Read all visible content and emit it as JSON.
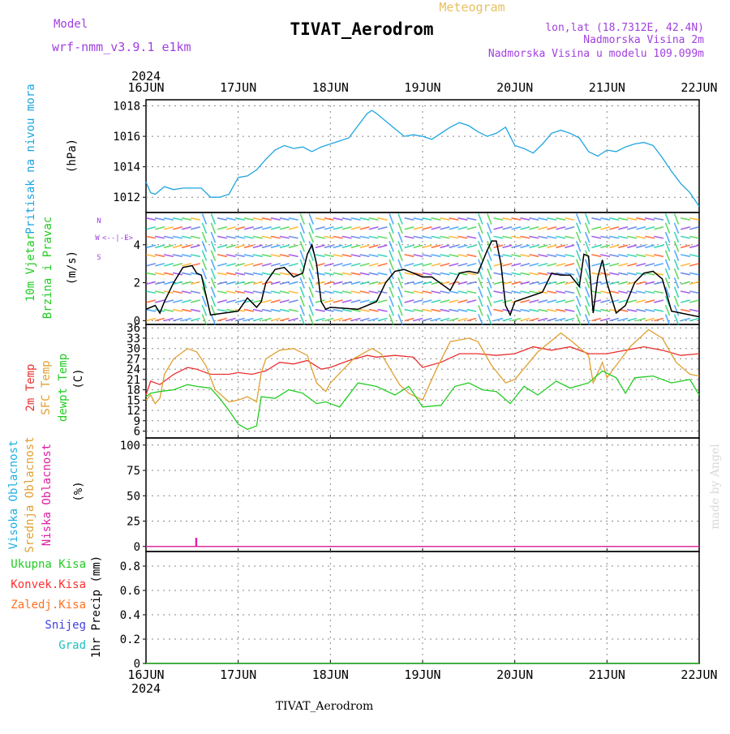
{
  "header": {
    "model_label": "Model",
    "model_name": "wrf-nmm_v3.9.1  e1km",
    "meteogram_label": "Meteogram",
    "title": "TIVAT_Aerodrom",
    "lonlat": "lon,lat (18.7312E, 42.4N)",
    "elevation": "Nadmorska Visina 2m",
    "model_elevation": "Nadmorska Visina u modelu 109.099m",
    "year_top": "2024",
    "year_bottom": "2024",
    "footer": "TIVAT_Aerodrom",
    "watermark": "made by Angel"
  },
  "colors": {
    "pressure": "#1ea5e0",
    "wind_speed": "#000000",
    "wind_gust": "#ff3030",
    "temp2m": "#e83030",
    "sfc_temp": "#e0a030",
    "dewpoint": "#22cc22",
    "model_text": "#a040e0",
    "meteogram_text": "#e8c060",
    "precip_total": "#22cc22",
    "precip_conv": "#ff3030",
    "precip_frz": "#ff7020",
    "precip_snow": "#4040e0",
    "precip_grad": "#20c0c0",
    "cloud_high": "#20b0e0",
    "cloud_mid": "#e0a030",
    "cloud_low": "#e020a0"
  },
  "chart_data": [
    {
      "type": "line",
      "panel": "pressure",
      "ylabel": [
        "Pritisak na nivou mora",
        "(hPa)"
      ],
      "x_ticks": [
        "16JUN",
        "17JUN",
        "18JUN",
        "19JUN",
        "20JUN",
        "21JUN",
        "22JUN"
      ],
      "ylim": [
        1011,
        1018.4
      ],
      "y_ticks": [
        1012,
        1014,
        1016,
        1018
      ],
      "grid": true,
      "series": [
        {
          "x": [
            0,
            0.05,
            0.1,
            0.2,
            0.3,
            0.4,
            0.5,
            0.6,
            0.65,
            0.7,
            0.8,
            0.9,
            1.0,
            1.1,
            1.2,
            1.3,
            1.4,
            1.5,
            1.6,
            1.7,
            1.8,
            1.9,
            2.0,
            2.1,
            2.2,
            2.3,
            2.4,
            2.45,
            2.5,
            2.6,
            2.7,
            2.8,
            2.9,
            3.0,
            3.1,
            3.2,
            3.3,
            3.4,
            3.5,
            3.6,
            3.7,
            3.8,
            3.9,
            4.0,
            4.1,
            4.2,
            4.3,
            4.4,
            4.5,
            4.6,
            4.7,
            4.8,
            4.9,
            5.0,
            5.1,
            5.2,
            5.3,
            5.4,
            5.5,
            5.6,
            5.7,
            5.8,
            5.9,
            6.0
          ],
          "values": [
            1013.0,
            1012.3,
            1012.2,
            1012.7,
            1012.5,
            1012.6,
            1012.6,
            1012.6,
            1012.3,
            1012.0,
            1012.0,
            1012.2,
            1013.3,
            1013.4,
            1013.8,
            1014.5,
            1015.1,
            1015.4,
            1015.2,
            1015.3,
            1015.0,
            1015.3,
            1015.5,
            1015.7,
            1015.9,
            1016.7,
            1017.5,
            1017.7,
            1017.5,
            1017.0,
            1016.5,
            1016.0,
            1016.1,
            1016.0,
            1015.8,
            1016.2,
            1016.6,
            1016.9,
            1016.7,
            1016.3,
            1016.0,
            1016.2,
            1016.6,
            1015.4,
            1015.2,
            1014.9,
            1015.5,
            1016.2,
            1016.4,
            1016.2,
            1015.9,
            1015.0,
            1014.7,
            1015.1,
            1015.0,
            1015.3,
            1015.5,
            1015.6,
            1015.4,
            1014.6,
            1013.7,
            1012.9,
            1012.3,
            1011.4
          ]
        }
      ]
    },
    {
      "type": "line",
      "panel": "wind",
      "ylabel": [
        "10m Vjetar",
        "Brzina i Pravac",
        "(m/s)"
      ],
      "compass": {
        "n": "N",
        "s": "S",
        "e": "E",
        "w": "W",
        "arrows": "<--|-->"
      },
      "ylim": [
        -0.2,
        5.7
      ],
      "y_ticks": [
        0,
        2,
        4
      ],
      "grid": true,
      "series": [
        {
          "name": "wind speed",
          "x": [
            0,
            0.1,
            0.15,
            0.2,
            0.3,
            0.4,
            0.5,
            0.55,
            0.6,
            0.7,
            1.0,
            1.1,
            1.2,
            1.25,
            1.3,
            1.4,
            1.5,
            1.6,
            1.7,
            1.75,
            1.8,
            1.85,
            1.9,
            1.95,
            2.0,
            2.3,
            2.5,
            2.6,
            2.7,
            2.8,
            2.9,
            3.0,
            3.1,
            3.3,
            3.4,
            3.5,
            3.6,
            3.7,
            3.75,
            3.8,
            3.85,
            3.9,
            3.95,
            4.0,
            4.3,
            4.4,
            4.5,
            4.6,
            4.7,
            4.75,
            4.8,
            4.85,
            4.9,
            4.95,
            5.0,
            5.1,
            5.2,
            5.3,
            5.4,
            5.5,
            5.6,
            5.7,
            6.0
          ],
          "values": [
            0.6,
            0.8,
            0.4,
            1.0,
            2.0,
            2.8,
            2.9,
            2.5,
            2.4,
            0.3,
            0.5,
            1.2,
            0.7,
            1.0,
            2.0,
            2.7,
            2.8,
            2.3,
            2.5,
            3.5,
            4.0,
            3.0,
            1.0,
            0.6,
            0.7,
            0.6,
            1.0,
            2.0,
            2.6,
            2.7,
            2.5,
            2.3,
            2.3,
            1.6,
            2.5,
            2.6,
            2.5,
            3.7,
            4.2,
            4.2,
            3.0,
            0.8,
            0.3,
            1.0,
            1.5,
            2.5,
            2.4,
            2.4,
            1.8,
            3.5,
            3.4,
            0.4,
            2.3,
            3.2,
            2.0,
            0.4,
            0.8,
            2.0,
            2.5,
            2.6,
            2.2,
            0.5,
            0.2
          ]
        }
      ]
    },
    {
      "type": "line",
      "panel": "temperature",
      "ylabel": [
        "2m Temp",
        "SFC Temp",
        "dewpt Temp",
        "(C)"
      ],
      "ylim": [
        4,
        37
      ],
      "y_ticks": [
        6,
        9,
        12,
        15,
        18,
        21,
        24,
        27,
        30,
        33,
        36
      ],
      "grid": true,
      "series": [
        {
          "name": "2m Temp",
          "x": [
            0,
            0.05,
            0.15,
            0.3,
            0.45,
            0.55,
            0.7,
            0.9,
            1.0,
            1.15,
            1.3,
            1.45,
            1.6,
            1.75,
            1.9,
            2.0,
            2.2,
            2.4,
            2.5,
            2.7,
            2.9,
            3.0,
            3.2,
            3.4,
            3.6,
            3.8,
            4.0,
            4.2,
            4.4,
            4.6,
            4.8,
            5.0,
            5.2,
            5.4,
            5.6,
            5.8,
            6.0
          ],
          "values": [
            16.5,
            20.5,
            19.5,
            22.5,
            24.5,
            24.0,
            22.5,
            22.5,
            23.0,
            22.5,
            23.5,
            26.0,
            25.5,
            26.5,
            24.0,
            24.5,
            26.5,
            28.0,
            27.5,
            28.0,
            27.5,
            24.5,
            26.0,
            28.5,
            28.5,
            28.0,
            28.5,
            30.5,
            29.5,
            30.5,
            28.5,
            28.5,
            29.5,
            30.5,
            29.5,
            28.0,
            28.5
          ]
        },
        {
          "name": "SFC Temp",
          "x": [
            0,
            0.05,
            0.1,
            0.15,
            0.2,
            0.3,
            0.45,
            0.55,
            0.65,
            0.75,
            0.9,
            1.0,
            1.1,
            1.2,
            1.25,
            1.3,
            1.45,
            1.6,
            1.75,
            1.85,
            1.95,
            2.0,
            2.25,
            2.45,
            2.55,
            2.65,
            2.75,
            2.85,
            3.0,
            3.15,
            3.3,
            3.5,
            3.6,
            3.75,
            3.9,
            4.0,
            4.25,
            4.5,
            4.6,
            4.8,
            4.85,
            4.95,
            5.0,
            5.25,
            5.45,
            5.6,
            5.75,
            5.9,
            6.0
          ],
          "values": [
            15.0,
            16.5,
            14.0,
            15.5,
            22.5,
            27.0,
            30.0,
            29.0,
            25.0,
            18.0,
            14.5,
            15.0,
            16.0,
            14.5,
            23.0,
            27.0,
            29.5,
            30.0,
            28.0,
            20.0,
            17.5,
            20.0,
            27.0,
            30.0,
            28.5,
            24.0,
            19.5,
            17.0,
            15.0,
            24.0,
            32.0,
            33.0,
            32.0,
            25.0,
            20.0,
            21.0,
            29.0,
            34.5,
            32.5,
            28.0,
            20.0,
            26.0,
            21.5,
            30.5,
            35.5,
            33.0,
            26.0,
            22.5,
            22.0
          ]
        },
        {
          "name": "dewpt Temp",
          "x": [
            0,
            0.05,
            0.15,
            0.3,
            0.45,
            0.55,
            0.7,
            0.8,
            0.9,
            1.0,
            1.1,
            1.2,
            1.25,
            1.4,
            1.55,
            1.7,
            1.85,
            1.95,
            2.1,
            2.3,
            2.5,
            2.7,
            2.85,
            3.0,
            3.2,
            3.35,
            3.5,
            3.65,
            3.8,
            3.95,
            4.1,
            4.25,
            4.45,
            4.6,
            4.8,
            4.95,
            5.1,
            5.2,
            5.3,
            5.5,
            5.7,
            5.9,
            6.0
          ],
          "values": [
            16.0,
            17.0,
            17.5,
            18.0,
            19.5,
            19.0,
            18.5,
            15.5,
            12.0,
            8.0,
            6.5,
            7.5,
            16.0,
            15.5,
            18.0,
            17.0,
            14.0,
            14.5,
            13.0,
            20.0,
            19.0,
            16.5,
            19.0,
            13.0,
            13.5,
            19.0,
            20.0,
            18.0,
            17.5,
            14.0,
            19.0,
            16.5,
            20.5,
            18.5,
            20.0,
            23.5,
            21.5,
            17.0,
            21.5,
            22.0,
            20.0,
            21.0,
            16.5
          ]
        }
      ]
    },
    {
      "type": "line",
      "panel": "cloud",
      "ylabel": [
        "Visoka Oblacnost",
        "Srednja Oblacnost",
        "Niska Oblacnost",
        "(%)"
      ],
      "ylim": [
        -5,
        107
      ],
      "y_ticks": [
        0,
        25,
        50,
        75,
        100
      ],
      "grid": true,
      "series": [
        {
          "name": "Visoka Oblacnost",
          "x": [
            0,
            6
          ],
          "values": [
            0,
            0
          ]
        },
        {
          "name": "Srednja Oblacnost",
          "x": [
            0,
            6
          ],
          "values": [
            0,
            0
          ]
        },
        {
          "name": "Niska Oblacnost",
          "x": [
            0,
            0.54,
            0.54,
            0.55,
            0.55,
            6
          ],
          "values": [
            0,
            0,
            8,
            8,
            0,
            0
          ]
        }
      ]
    },
    {
      "type": "line",
      "panel": "precip",
      "ylabel": [
        "1hr Precip (mm)"
      ],
      "legend": [
        "Ukupna Kisa",
        "Konvek.Kisa",
        "Zaledj.Kisa",
        "Snijeg",
        "Grad"
      ],
      "ylim": [
        0,
        0.92
      ],
      "y_ticks": [
        0,
        0.2,
        0.4,
        0.6,
        0.8
      ],
      "y_tick_labels": [
        "0",
        "0.2",
        "0.4",
        "0.6",
        "0.8"
      ],
      "grid": true,
      "series": [
        {
          "name": "Ukupna Kisa",
          "x": [
            0,
            6
          ],
          "values": [
            0,
            0
          ]
        }
      ]
    }
  ]
}
